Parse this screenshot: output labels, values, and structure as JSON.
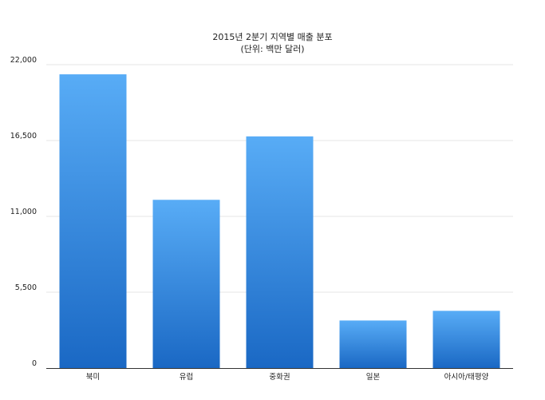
{
  "chart_data": {
    "type": "bar",
    "title": "2015년 2분기 지역별 매출 분포",
    "subtitle": "(단위: 백만 달러)",
    "xlabel": "",
    "ylabel": "",
    "categories": [
      "북미",
      "유럽",
      "중화권",
      "일본",
      "아시아/태평양"
    ],
    "values": [
      21300,
      12200,
      16800,
      3450,
      4150
    ],
    "ylim": [
      0,
      22000
    ],
    "yticks": [
      0,
      5500,
      11000,
      16500,
      22000
    ],
    "ytick_labels": [
      "0",
      "5,500",
      "11,000",
      "16,500",
      "22,000"
    ],
    "grid": true,
    "legend": "none",
    "colors": {
      "bar_top": "#58acf6",
      "bar_bottom": "#1a68c4",
      "grid": "#e6e6e6",
      "axis": "#333333"
    }
  }
}
